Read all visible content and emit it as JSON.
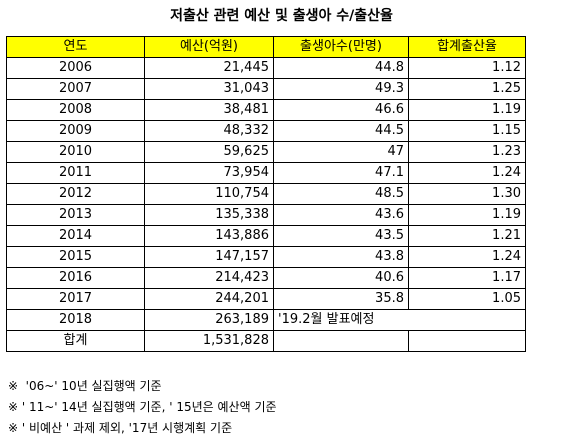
{
  "title": "저출산 관련 예산 및 출생아 수/출산율",
  "columns": [
    "연도",
    "예산(억원)",
    "출생아수(만명)",
    "합계출산율"
  ],
  "rows": [
    {
      "year": "2006",
      "budget": "21,445",
      "births": "44.8",
      "tfr": "1.12"
    },
    {
      "year": "2007",
      "budget": "31,043",
      "births": "49.3",
      "tfr": "1.25"
    },
    {
      "year": "2008",
      "budget": "38,481",
      "births": "46.6",
      "tfr": "1.19"
    },
    {
      "year": "2009",
      "budget": "48,332",
      "births": "44.5",
      "tfr": "1.15"
    },
    {
      "year": "2010",
      "budget": "59,625",
      "births": "47",
      "tfr": "1.23"
    },
    {
      "year": "2011",
      "budget": "73,954",
      "births": "47.1",
      "tfr": "1.24"
    },
    {
      "year": "2012",
      "budget": "110,754",
      "births": "48.5",
      "tfr": "1.30"
    },
    {
      "year": "2013",
      "budget": "135,338",
      "births": "43.6",
      "tfr": "1.19"
    },
    {
      "year": "2014",
      "budget": "143,886",
      "births": "43.5",
      "tfr": "1.21"
    },
    {
      "year": "2015",
      "budget": "147,157",
      "births": "43.8",
      "tfr": "1.24"
    },
    {
      "year": "2016",
      "budget": "214,423",
      "births": "40.6",
      "tfr": "1.17"
    },
    {
      "year": "2017",
      "budget": "244,201",
      "births": "35.8",
      "tfr": "1.05"
    }
  ],
  "row_2018": {
    "year": "2018",
    "budget": "263,189",
    "note": "'19.2월 발표예정"
  },
  "total": {
    "label": "합계",
    "budget": "1,531,828"
  },
  "notes": [
    "※  '06~' 10년 실집행액 기준",
    "※ ' 11~' 14년 실집행액 기준, ' 15년은 예산액 기준",
    "※ ' 비예산 ' 과제 제외, '17년 시행계획 기준"
  ],
  "colors": {
    "header_bg": "#ffff00",
    "border": "#000000"
  }
}
